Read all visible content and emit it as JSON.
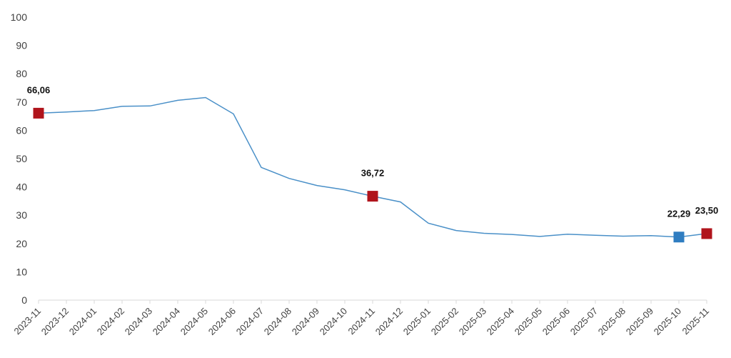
{
  "chart_data": {
    "type": "line",
    "title": "",
    "xlabel": "",
    "ylabel": "",
    "ylim": [
      0,
      100
    ],
    "yticks": [
      0,
      10,
      20,
      30,
      40,
      50,
      60,
      70,
      80,
      90,
      100
    ],
    "grid": false,
    "categories": [
      "2023-11",
      "2023-12",
      "2024-01",
      "2024-02",
      "2024-03",
      "2024-04",
      "2024-05",
      "2024-06",
      "2024-07",
      "2024-08",
      "2024-09",
      "2024-10",
      "2024-11",
      "2024-12",
      "2025-01",
      "2025-02",
      "2025-03",
      "2025-04",
      "2025-05",
      "2025-06",
      "2025-07",
      "2025-08",
      "2025-09",
      "2025-10",
      "2025-11"
    ],
    "series": [
      {
        "color": "#4a90c8",
        "values": [
          66.06,
          66.5,
          67.0,
          68.5,
          68.6,
          70.6,
          71.6,
          65.8,
          46.9,
          43.0,
          40.5,
          39.0,
          36.72,
          34.7,
          27.2,
          24.6,
          23.6,
          23.2,
          22.5,
          23.3,
          22.9,
          22.6,
          22.8,
          22.29,
          23.5
        ]
      }
    ],
    "highlighted_points": [
      {
        "index": 0,
        "label": "66,06",
        "color": "#b0141c"
      },
      {
        "index": 12,
        "label": "36,72",
        "color": "#b0141c"
      },
      {
        "index": 23,
        "label": "22,29",
        "color": "#2f7dc1"
      },
      {
        "index": 24,
        "label": "23,50",
        "color": "#b0141c"
      }
    ]
  }
}
